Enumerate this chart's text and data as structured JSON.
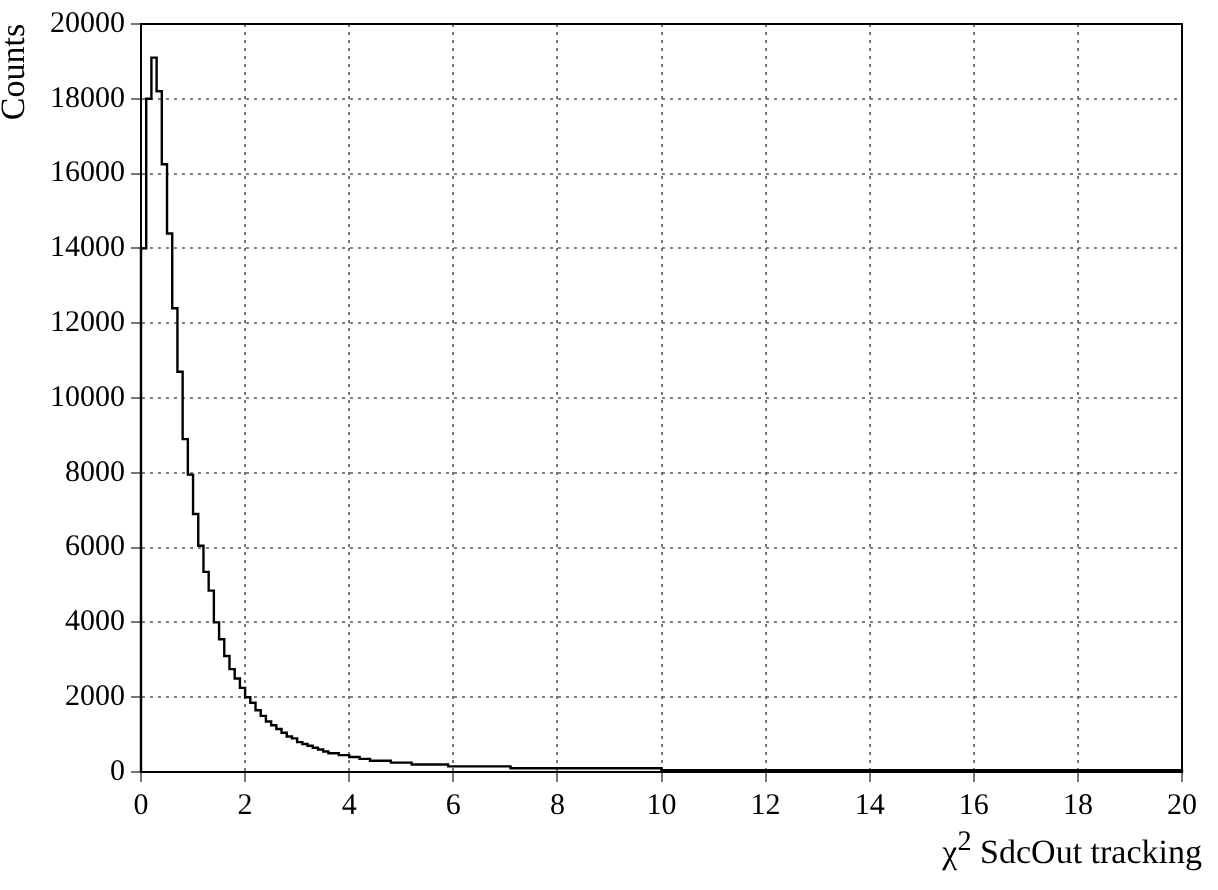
{
  "chart_data": {
    "type": "histogram",
    "xlabel": "χ$^{2}$ SdcOut tracking",
    "ylabel": "Counts",
    "bins": [
      0,
      0.1,
      0.2,
      0.3,
      0.4,
      0.5,
      0.6,
      0.7,
      0.8,
      0.9,
      1,
      1.1,
      1.2,
      1.3,
      1.4,
      1.5,
      1.6,
      1.7,
      1.8,
      1.9,
      2,
      2.1,
      2.2,
      2.3,
      2.4,
      2.5,
      2.6,
      2.7,
      2.8,
      2.9,
      3,
      3.1,
      3.2,
      3.3,
      3.4,
      3.5,
      3.6,
      3.7,
      3.8,
      3.9,
      4,
      4.1,
      4.2,
      4.3,
      4.4,
      4.5,
      4.6,
      4.7,
      4.8,
      4.9,
      5,
      5.1,
      5.2,
      5.3,
      5.4,
      5.5,
      5.6,
      5.7,
      5.8,
      5.9,
      6,
      6.1,
      6.2,
      6.3,
      6.4,
      6.5,
      6.6,
      6.7,
      6.8,
      6.9,
      7,
      7.1,
      7.2,
      7.3,
      7.4,
      7.5,
      7.6,
      7.7,
      7.8,
      7.9,
      8,
      8.1,
      8.2,
      8.3,
      8.4,
      8.5,
      8.6,
      8.7,
      8.8,
      8.9,
      9,
      9.1,
      9.2,
      9.3,
      9.4,
      9.5,
      9.6,
      9.7,
      9.8,
      9.9,
      10,
      10.1,
      10.2,
      10.3,
      10.4,
      10.5,
      10.6,
      10.7,
      10.8,
      10.9,
      11,
      11.1,
      11.2,
      11.3,
      11.4,
      11.5,
      11.6,
      11.7,
      11.8,
      11.9,
      12,
      12.1,
      12.2,
      12.3,
      12.4,
      12.5,
      12.6,
      12.7,
      12.8,
      12.9,
      13,
      13.1,
      13.2,
      13.3,
      13.4,
      13.5,
      13.6,
      13.7,
      13.8,
      13.9,
      14,
      14.1,
      14.2,
      14.3,
      14.4,
      14.5,
      14.6,
      14.7,
      14.8,
      14.9,
      15,
      15.1,
      15.2,
      15.3,
      15.4,
      15.5,
      15.6,
      15.7,
      15.8,
      15.9,
      16,
      16.1,
      16.2,
      16.3,
      16.4,
      16.5,
      16.6,
      16.7,
      16.8,
      16.9,
      17,
      17.1,
      17.2,
      17.3,
      17.4,
      17.5,
      17.6,
      17.7,
      17.8,
      17.9,
      18,
      18.1,
      18.2,
      18.3,
      18.4,
      18.5,
      18.6,
      18.7,
      18.8,
      18.9,
      19,
      19.1,
      19.2,
      19.3,
      19.4,
      19.5,
      19.6,
      19.7,
      19.8,
      19.9,
      20
    ],
    "values": [
      14000,
      18000,
      19100,
      18200,
      16250,
      14400,
      12400,
      10700,
      8900,
      7950,
      6900,
      6050,
      5350,
      4850,
      4000,
      3550,
      3100,
      2750,
      2500,
      2250,
      2000,
      1850,
      1650,
      1500,
      1350,
      1250,
      1150,
      1050,
      950,
      900,
      800,
      750,
      700,
      650,
      600,
      550,
      500,
      500,
      450,
      450,
      400,
      400,
      350,
      350,
      300,
      300,
      300,
      300,
      250,
      250,
      250,
      250,
      200,
      200,
      200,
      200,
      200,
      200,
      200,
      150,
      150,
      150,
      150,
      150,
      150,
      150,
      150,
      150,
      150,
      150,
      150,
      100,
      100,
      100,
      100,
      100,
      100,
      100,
      100,
      100,
      100,
      100,
      100,
      100,
      100,
      100,
      100,
      100,
      100,
      100,
      100,
      100,
      100,
      100,
      100,
      100,
      100,
      100,
      100,
      100,
      50,
      50,
      50,
      50,
      50,
      50,
      50,
      50,
      50,
      50,
      50,
      50,
      50,
      50,
      50,
      50,
      50,
      50,
      50,
      50,
      50,
      50,
      50,
      50,
      50,
      50,
      50,
      50,
      50,
      50,
      50,
      50,
      50,
      50,
      50,
      50,
      50,
      50,
      50,
      50,
      50,
      50,
      50,
      50,
      50,
      50,
      50,
      50,
      50,
      50,
      50,
      50,
      50,
      50,
      50,
      50,
      50,
      50,
      50,
      50,
      50,
      50,
      50,
      50,
      50,
      50,
      50,
      50,
      50,
      50,
      50,
      50,
      50,
      50,
      50,
      50,
      50,
      50,
      50,
      50,
      50,
      50,
      50,
      50,
      50,
      50,
      50,
      50,
      50,
      50,
      50,
      50,
      50,
      50,
      50,
      50,
      50,
      50,
      50,
      50
    ],
    "color": "#000000",
    "xlim": [
      0,
      20
    ],
    "xticks": [
      0,
      2,
      4,
      6,
      8,
      10,
      12,
      14,
      16,
      18,
      20
    ],
    "ylim": [
      0,
      20000
    ],
    "yticks": [
      0,
      2000,
      4000,
      6000,
      8000,
      10000,
      12000,
      14000,
      16000,
      18000,
      20000
    ],
    "grid": true
  }
}
